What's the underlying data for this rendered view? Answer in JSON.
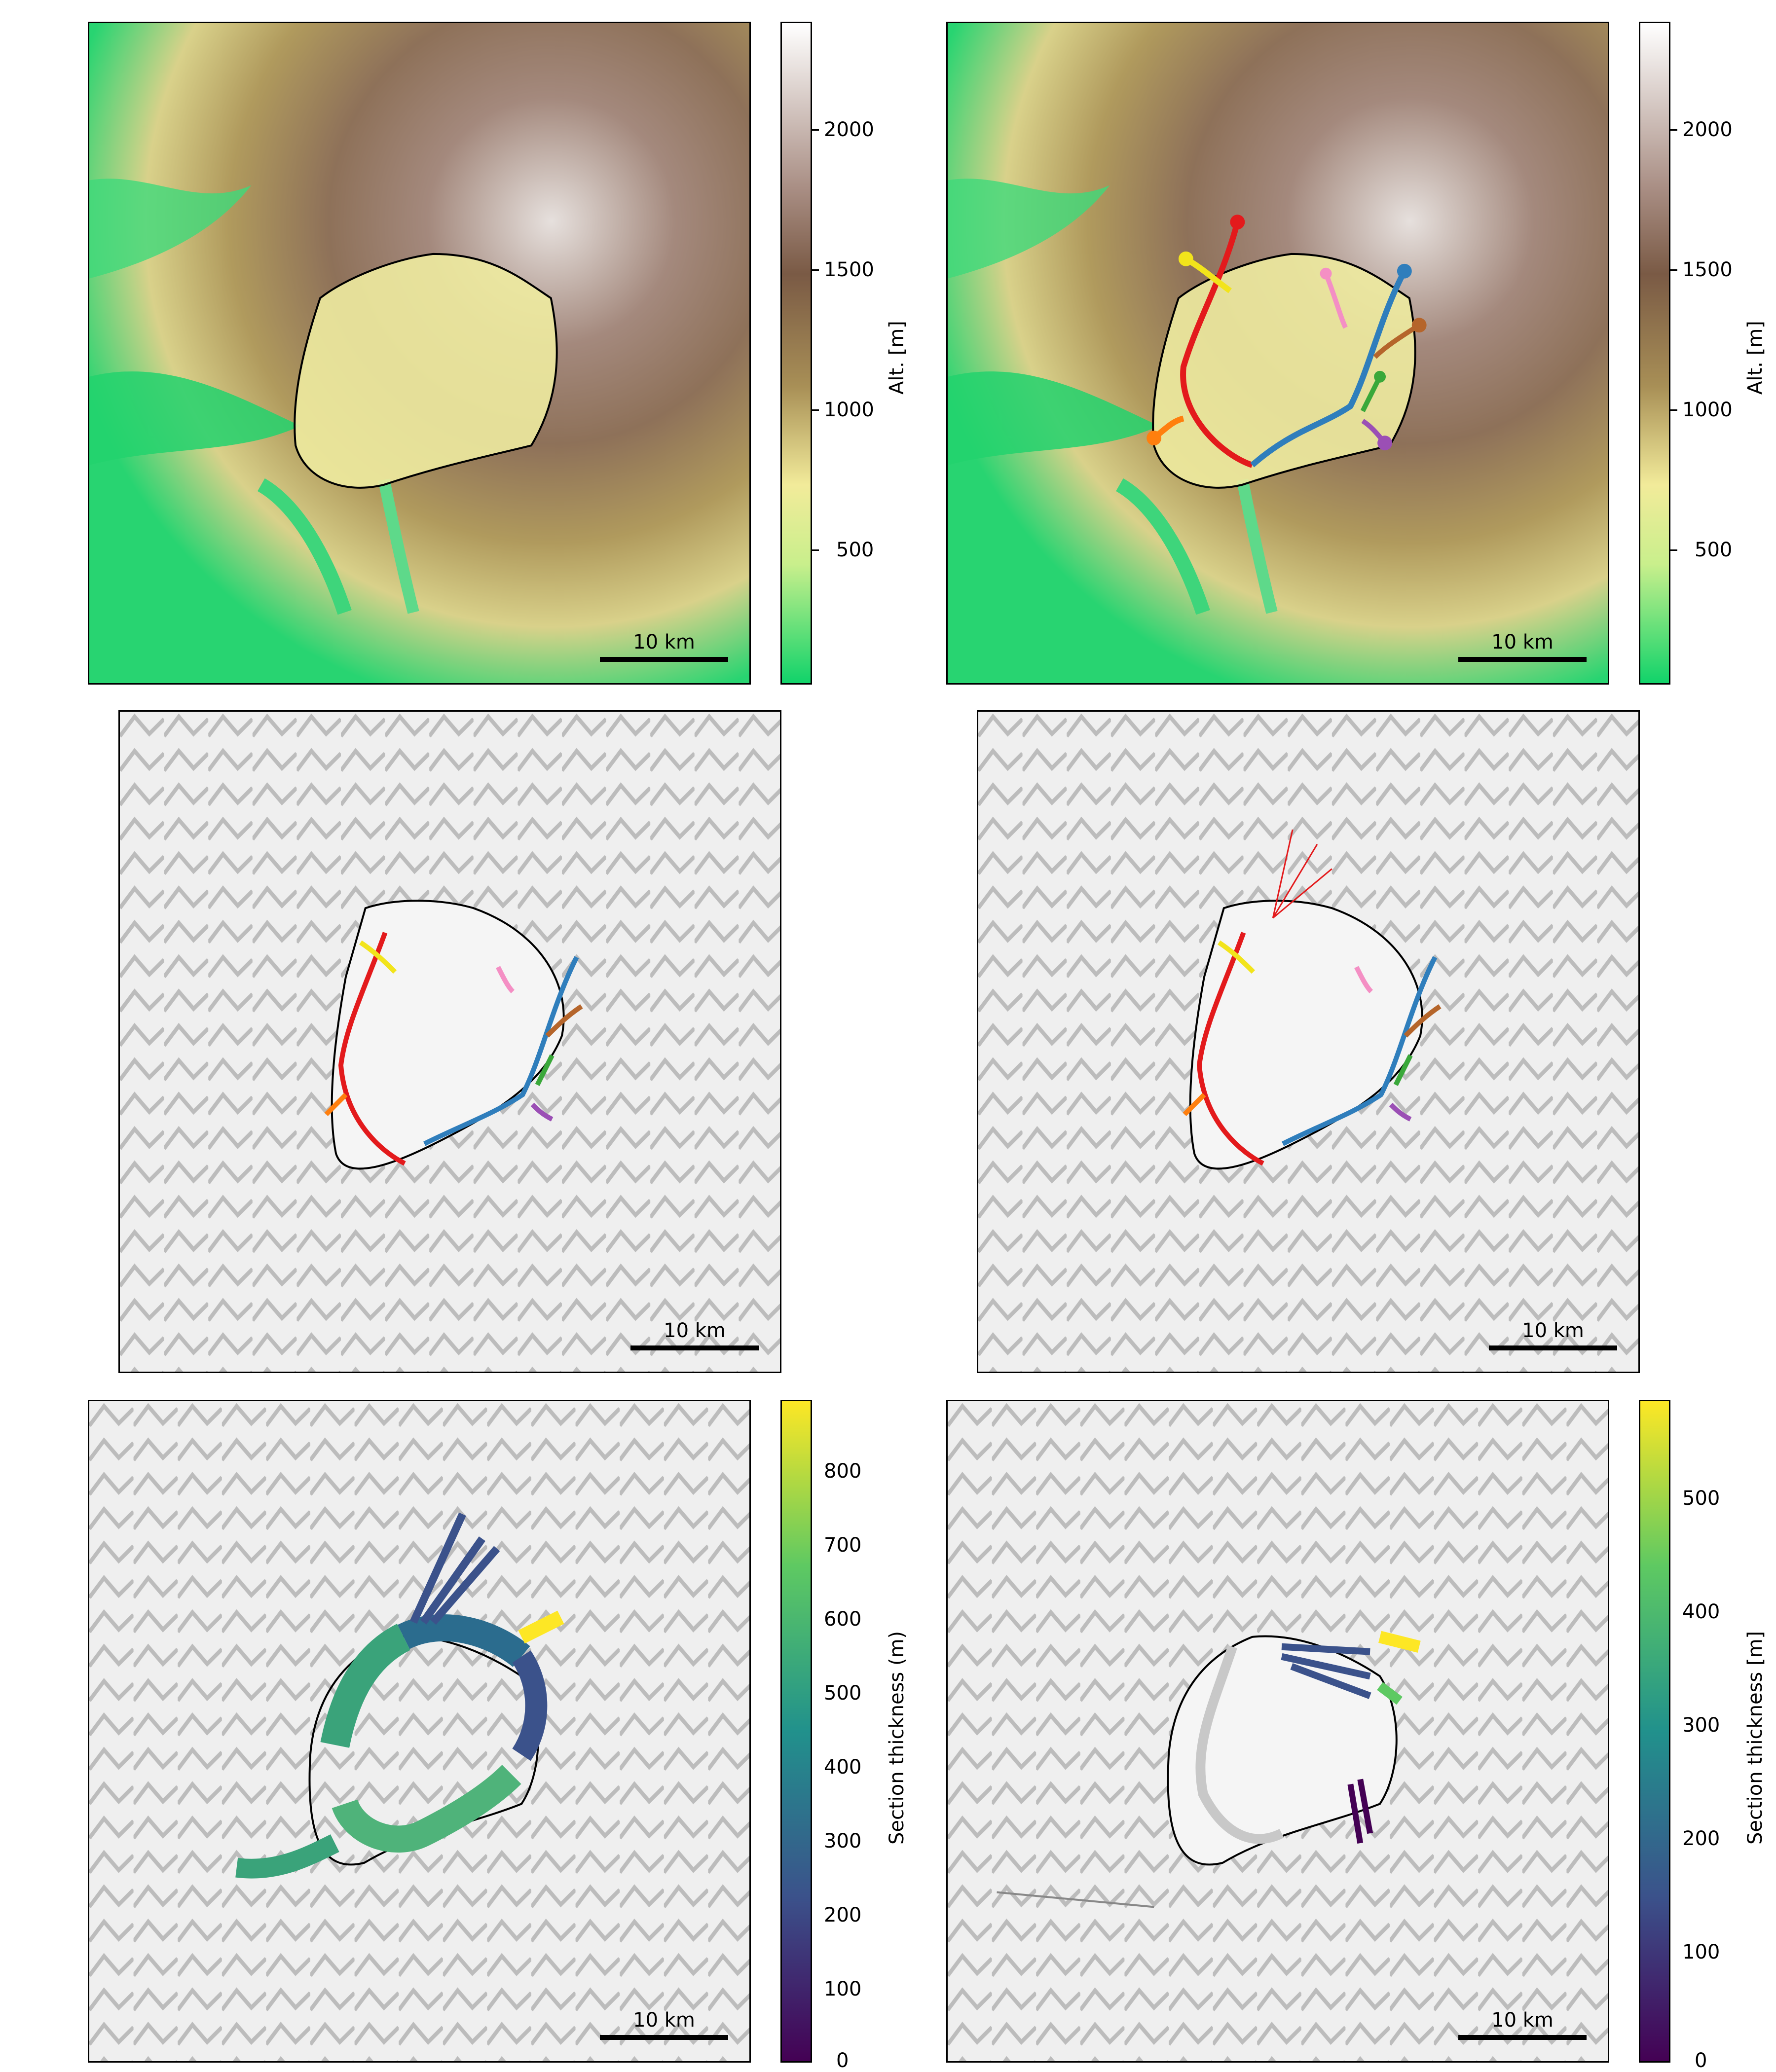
{
  "scale_bar_label": "10 km",
  "colorbar_altitude": {
    "label": "Alt. [m]",
    "ticks": [
      "2000",
      "1500",
      "1000",
      "500"
    ],
    "colors": [
      "#ffffff",
      "#a98e84",
      "#7a5a45",
      "#a88f56",
      "#f2eb9a",
      "#c9ef8c",
      "#11d36a"
    ]
  },
  "colorbar_section_left": {
    "label": "Section thickness (m)",
    "ticks": [
      "800",
      "700",
      "600",
      "500",
      "400",
      "300",
      "200",
      "100",
      "0"
    ]
  },
  "colorbar_section_right": {
    "label": "Section thickness [m]",
    "ticks": [
      "500",
      "400",
      "300",
      "200",
      "100",
      "0"
    ]
  },
  "viridis": [
    "#440154",
    "#3b528b",
    "#21918c",
    "#5ec962",
    "#fde725"
  ],
  "flowline_colors": {
    "red": "#e31a1c",
    "blue": "#2f7ebc",
    "orange": "#ff7f0e",
    "yellow": "#f2e41b",
    "pink": "#f48fc4",
    "brown": "#b5652b",
    "green": "#3aa83a",
    "purple": "#9b4fb5"
  }
}
